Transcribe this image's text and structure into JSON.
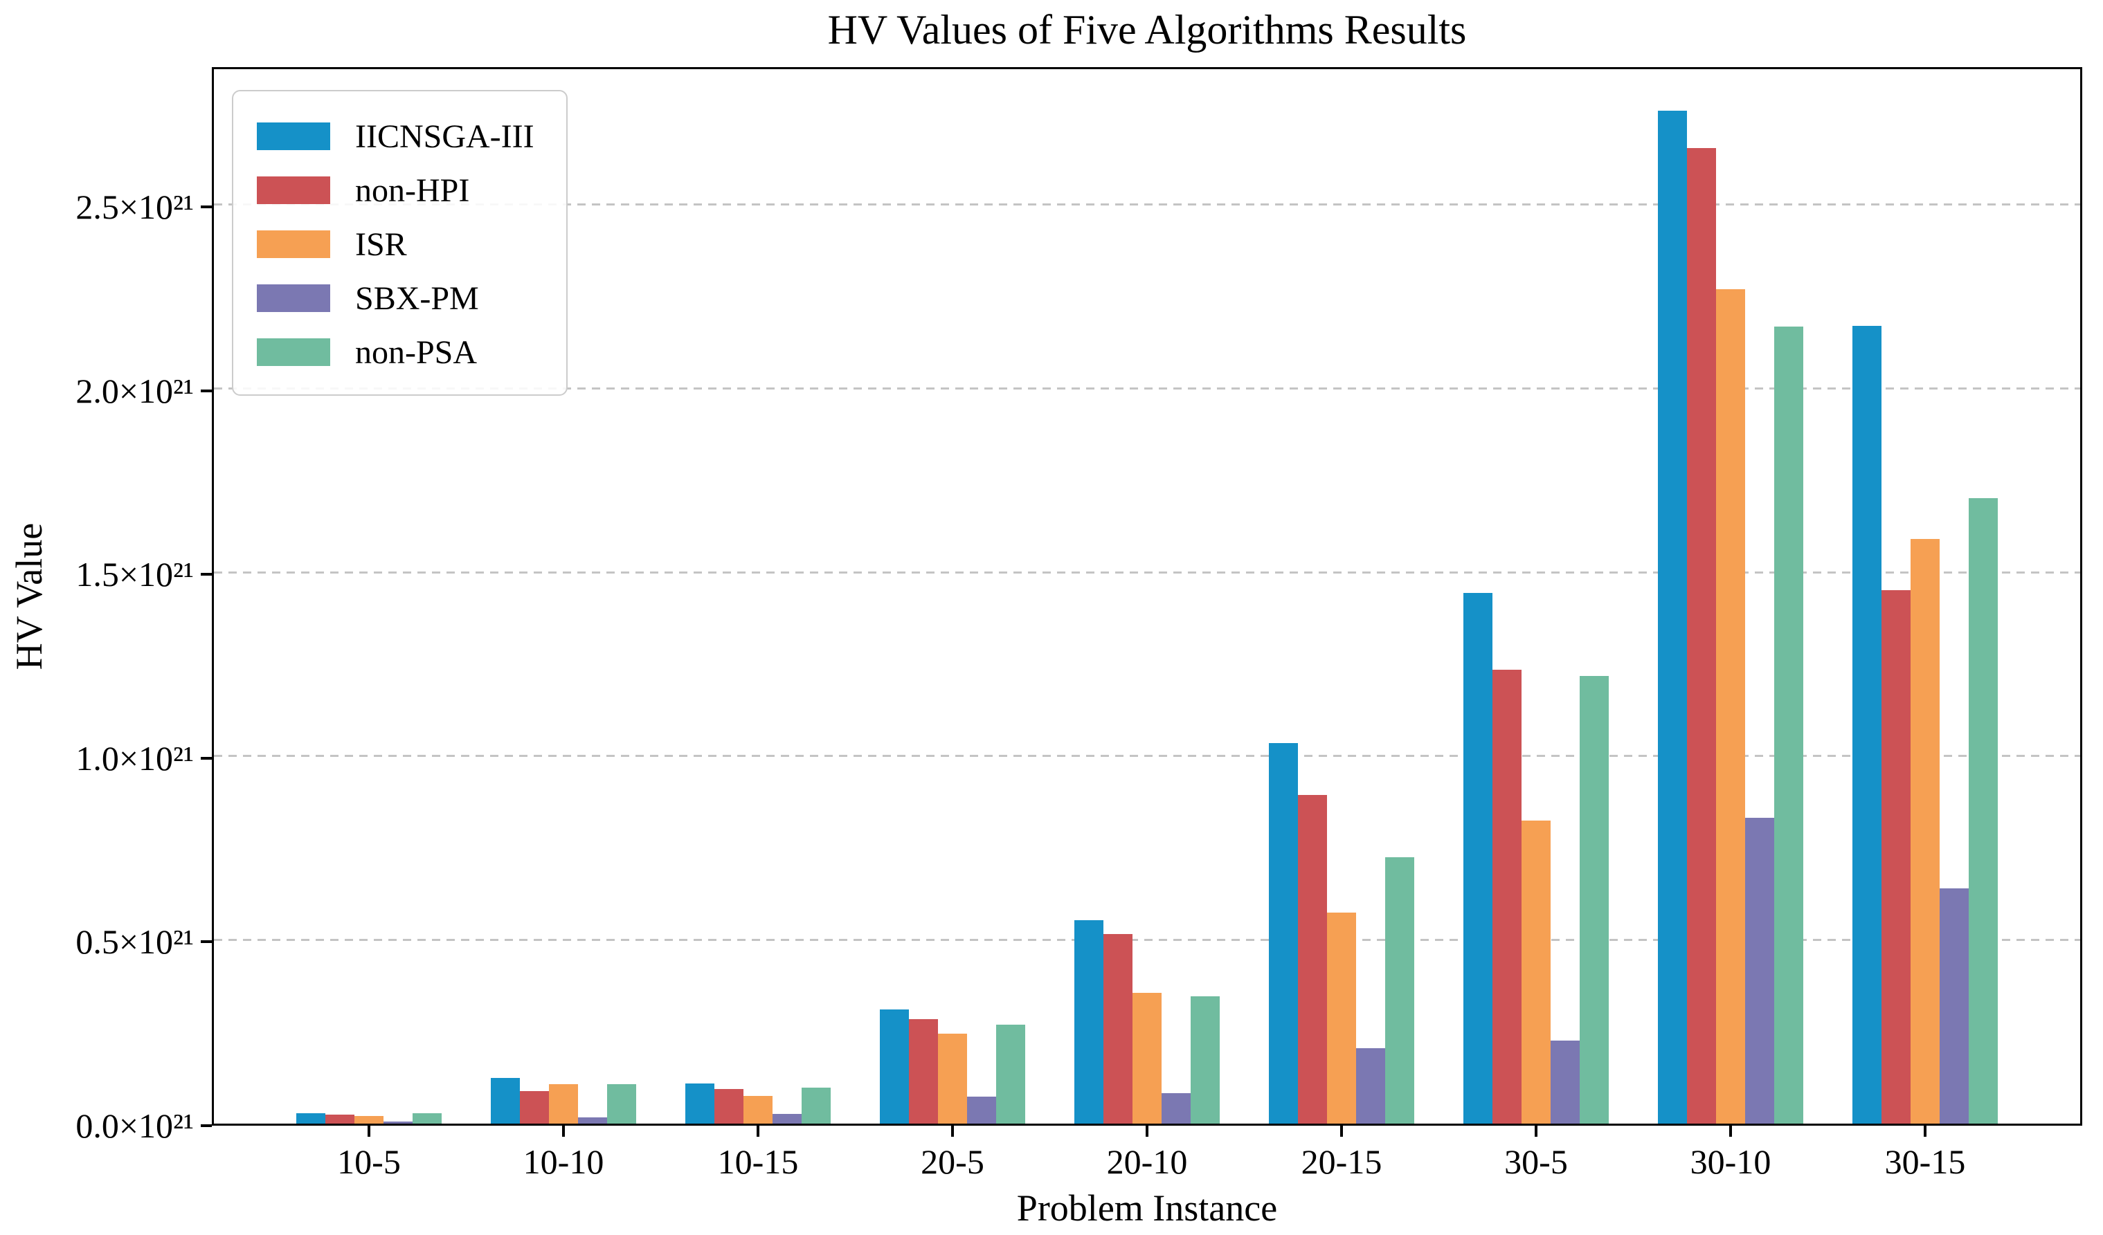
{
  "chart_data": {
    "type": "bar",
    "title": "HV Values of Five Algorithms Results",
    "xlabel": "Problem Instance",
    "ylabel": "HV Value",
    "value_unit": "×10²¹",
    "categories": [
      "10-5",
      "10-10",
      "10-15",
      "20-5",
      "20-10",
      "20-15",
      "30-5",
      "30-10",
      "30-15"
    ],
    "series": [
      {
        "name": "IICNSGA-III",
        "color": "#1591c8",
        "values": [
          0.028,
          0.124,
          0.11,
          0.31,
          0.553,
          1.035,
          1.443,
          2.755,
          2.17
        ]
      },
      {
        "name": "non-HPI",
        "color": "#cc5255",
        "values": [
          0.025,
          0.088,
          0.094,
          0.285,
          0.515,
          0.895,
          1.235,
          2.655,
          1.452
        ]
      },
      {
        "name": "ISR",
        "color": "#f6a053",
        "values": [
          0.021,
          0.107,
          0.075,
          0.245,
          0.356,
          0.575,
          0.825,
          2.27,
          1.591
        ]
      },
      {
        "name": "SBX-PM",
        "color": "#7b78b2",
        "values": [
          0.006,
          0.017,
          0.026,
          0.073,
          0.082,
          0.205,
          0.226,
          0.832,
          0.64
        ]
      },
      {
        "name": "non-PSA",
        "color": "#70bc9f",
        "values": [
          0.028,
          0.107,
          0.098,
          0.27,
          0.347,
          0.725,
          1.218,
          2.168,
          1.701
        ]
      }
    ],
    "yticks": [
      {
        "value": 0.0,
        "label": "0.0×10²¹"
      },
      {
        "value": 0.5,
        "label": "0.5×10²¹"
      },
      {
        "value": 1.0,
        "label": "1.0×10²¹"
      },
      {
        "value": 1.5,
        "label": "1.5×10²¹"
      },
      {
        "value": 2.0,
        "label": "2.0×10²¹"
      },
      {
        "value": 2.5,
        "label": "2.5×10²¹"
      }
    ],
    "ylim": [
      0,
      2.88
    ],
    "grid": "horizontal dashed gray",
    "legend_position": "upper left"
  }
}
